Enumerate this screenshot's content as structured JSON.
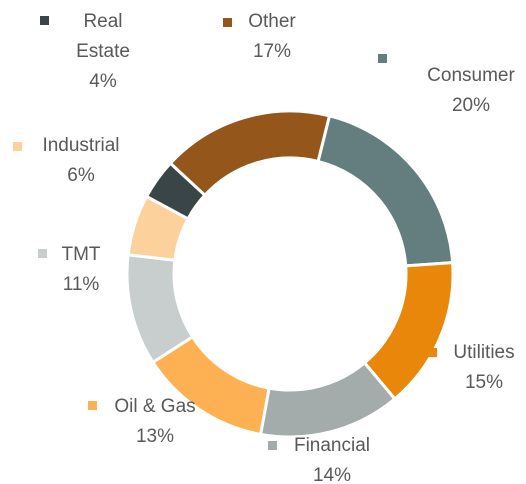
{
  "chart_data": {
    "type": "donut",
    "categories": [
      "Consumer",
      "Utilities",
      "Financial",
      "Oil & Gas",
      "TMT",
      "Industrial",
      "Real Estate",
      "Other"
    ],
    "values": [
      20,
      15,
      14,
      13,
      11,
      6,
      4,
      17
    ],
    "value_labels": [
      "20%",
      "15%",
      "14%",
      "13%",
      "11%",
      "6%",
      "4%",
      "17%"
    ],
    "colors": [
      "#647d7f",
      "#e8870a",
      "#a3acab",
      "#fdb152",
      "#c7cecd",
      "#fdd19c",
      "#394547",
      "#94561a"
    ]
  }
}
